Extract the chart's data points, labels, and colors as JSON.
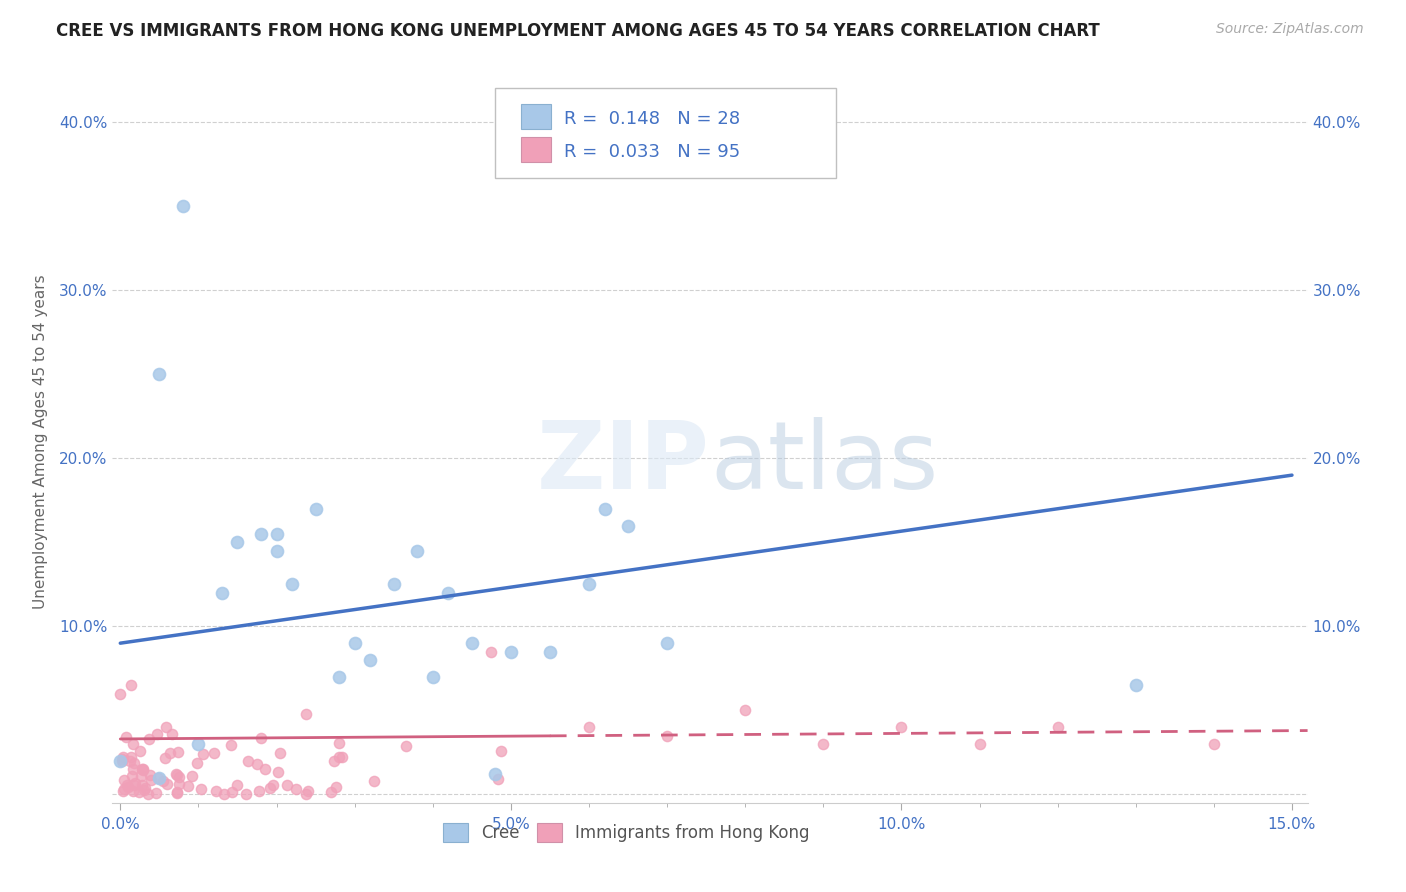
{
  "title": "CREE VS IMMIGRANTS FROM HONG KONG UNEMPLOYMENT AMONG AGES 45 TO 54 YEARS CORRELATION CHART",
  "source": "Source: ZipAtlas.com",
  "ylabel": "Unemployment Among Ages 45 to 54 years",
  "legend_label1": "Cree",
  "legend_label2": "Immigrants from Hong Kong",
  "R1": 0.148,
  "N1": 28,
  "R2": 0.033,
  "N2": 95,
  "xlim": [
    -0.001,
    0.152
  ],
  "ylim": [
    -0.005,
    0.425
  ],
  "color_cree": "#a8c8e8",
  "color_hk": "#f0a0b8",
  "color_text_blue": "#4472C4",
  "color_trend_cree": "#4472C4",
  "color_trend_hk": "#d06080",
  "background": "#ffffff",
  "cree_trend_x0": 0.0,
  "cree_trend_y0": 0.09,
  "cree_trend_x1": 0.15,
  "cree_trend_y1": 0.19,
  "hk_trend_x0": 0.0,
  "hk_trend_y0": 0.033,
  "hk_trend_x1": 0.15,
  "hk_trend_y1": 0.038,
  "cree_points_x": [
    0.0,
    0.005,
    0.008,
    0.015,
    0.02,
    0.022,
    0.025,
    0.028,
    0.03,
    0.032,
    0.035,
    0.038,
    0.04,
    0.042,
    0.045,
    0.048,
    0.05,
    0.055,
    0.06,
    0.062,
    0.065,
    0.07,
    0.01,
    0.013,
    0.018,
    0.02,
    0.13,
    0.005
  ],
  "cree_points_y": [
    0.02,
    0.25,
    0.35,
    0.15,
    0.145,
    0.125,
    0.17,
    0.07,
    0.09,
    0.08,
    0.125,
    0.145,
    0.07,
    0.12,
    0.09,
    0.012,
    0.085,
    0.085,
    0.125,
    0.17,
    0.16,
    0.09,
    0.03,
    0.12,
    0.155,
    0.155,
    0.065,
    0.01
  ],
  "hk_seed": 42
}
